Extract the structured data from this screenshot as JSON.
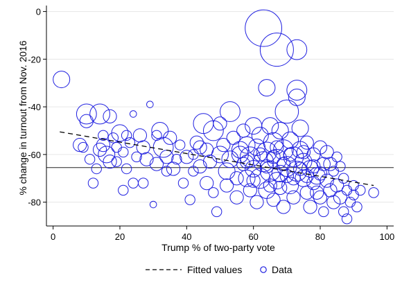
{
  "chart_data": {
    "type": "scatter",
    "xlabel": "Trump % of two-party vote",
    "ylabel": "% change in turnout from Nov. 2016",
    "xlim": [
      -2,
      102
    ],
    "ylim": [
      -90,
      2.5
    ],
    "xticks": [
      0,
      20,
      40,
      60,
      80,
      100
    ],
    "yticks": [
      0,
      -20,
      -40,
      -60,
      -80
    ],
    "grid": "y",
    "legend_position": "bottom",
    "reference_line": {
      "y": -65.5
    },
    "series": [
      {
        "name": "Data",
        "marker": "hollow-circle",
        "color": "#1f1fe0",
        "points": [
          {
            "x": 2.5,
            "y": -28.5,
            "s": 5
          },
          {
            "x": 8,
            "y": -56,
            "s": 4
          },
          {
            "x": 10,
            "y": -43,
            "s": 6
          },
          {
            "x": 10,
            "y": -46,
            "s": 4
          },
          {
            "x": 11,
            "y": -62,
            "s": 3
          },
          {
            "x": 12,
            "y": -72,
            "s": 3
          },
          {
            "x": 14,
            "y": -43,
            "s": 6
          },
          {
            "x": 14,
            "y": -58,
            "s": 4
          },
          {
            "x": 15,
            "y": -52,
            "s": 3
          },
          {
            "x": 15,
            "y": -56,
            "s": 4
          },
          {
            "x": 16,
            "y": -60,
            "s": 5
          },
          {
            "x": 17,
            "y": -44,
            "s": 4
          },
          {
            "x": 17,
            "y": -63,
            "s": 4
          },
          {
            "x": 18,
            "y": -53,
            "s": 3
          },
          {
            "x": 19,
            "y": -57,
            "s": 3
          },
          {
            "x": 20,
            "y": -51,
            "s": 5
          },
          {
            "x": 21,
            "y": -59,
            "s": 3
          },
          {
            "x": 21,
            "y": -75,
            "s": 3
          },
          {
            "x": 22,
            "y": -66,
            "s": 3
          },
          {
            "x": 23,
            "y": -55,
            "s": 3
          },
          {
            "x": 24,
            "y": -43,
            "s": 2
          },
          {
            "x": 24,
            "y": -72,
            "s": 3
          },
          {
            "x": 26,
            "y": -52,
            "s": 4
          },
          {
            "x": 27,
            "y": -57,
            "s": 4
          },
          {
            "x": 27,
            "y": -72,
            "s": 3
          },
          {
            "x": 28,
            "y": -62,
            "s": 4
          },
          {
            "x": 29,
            "y": -39,
            "s": 2
          },
          {
            "x": 30,
            "y": -81,
            "s": 2
          },
          {
            "x": 31,
            "y": -52,
            "s": 3
          },
          {
            "x": 31,
            "y": -64,
            "s": 4
          },
          {
            "x": 32,
            "y": -50,
            "s": 5
          },
          {
            "x": 33,
            "y": -57,
            "s": 6
          },
          {
            "x": 34,
            "y": -61,
            "s": 4
          },
          {
            "x": 35,
            "y": -53,
            "s": 4
          },
          {
            "x": 36,
            "y": -66,
            "s": 4
          },
          {
            "x": 38,
            "y": -56,
            "s": 3
          },
          {
            "x": 39,
            "y": -72,
            "s": 3
          },
          {
            "x": 40,
            "y": -61,
            "s": 4
          },
          {
            "x": 41,
            "y": -79,
            "s": 3
          },
          {
            "x": 42,
            "y": -60,
            "s": 3
          },
          {
            "x": 43,
            "y": -55,
            "s": 4
          },
          {
            "x": 44,
            "y": -65,
            "s": 4
          },
          {
            "x": 45,
            "y": -47,
            "s": 6
          },
          {
            "x": 46,
            "y": -58,
            "s": 4
          },
          {
            "x": 46,
            "y": -72,
            "s": 4
          },
          {
            "x": 47,
            "y": -63,
            "s": 4
          },
          {
            "x": 48,
            "y": -50,
            "s": 6
          },
          {
            "x": 48,
            "y": -76,
            "s": 3
          },
          {
            "x": 49,
            "y": -84,
            "s": 3
          },
          {
            "x": 50,
            "y": -47,
            "s": 4
          },
          {
            "x": 50,
            "y": -60,
            "s": 5
          },
          {
            "x": 51,
            "y": -56,
            "s": 4
          },
          {
            "x": 52,
            "y": -67,
            "s": 5
          },
          {
            "x": 52,
            "y": -73,
            "s": 4
          },
          {
            "x": 53,
            "y": -42,
            "s": 6
          },
          {
            "x": 53,
            "y": -62,
            "s": 5
          },
          {
            "x": 54,
            "y": -53,
            "s": 4
          },
          {
            "x": 55,
            "y": -70,
            "s": 4
          },
          {
            "x": 55,
            "y": -78,
            "s": 4
          },
          {
            "x": 56,
            "y": -58,
            "s": 5
          },
          {
            "x": 57,
            "y": -64,
            "s": 4
          },
          {
            "x": 57,
            "y": -50,
            "s": 4
          },
          {
            "x": 58,
            "y": -70,
            "s": 5
          },
          {
            "x": 58,
            "y": -56,
            "s": 5
          },
          {
            "x": 59,
            "y": -61,
            "s": 6
          },
          {
            "x": 59,
            "y": -75,
            "s": 4
          },
          {
            "x": 60,
            "y": -48,
            "s": 5
          },
          {
            "x": 60,
            "y": -66,
            "s": 5
          },
          {
            "x": 61,
            "y": -57,
            "s": 5
          },
          {
            "x": 61,
            "y": -80,
            "s": 4
          },
          {
            "x": 62,
            "y": -70,
            "s": 6
          },
          {
            "x": 62,
            "y": -52,
            "s": 5
          },
          {
            "x": 63,
            "y": -63,
            "s": 6
          },
          {
            "x": 63,
            "y": -7,
            "s": 11
          },
          {
            "x": 64,
            "y": -59,
            "s": 6
          },
          {
            "x": 64,
            "y": -32,
            "s": 5
          },
          {
            "x": 64,
            "y": -75,
            "s": 5
          },
          {
            "x": 65,
            "y": -48,
            "s": 5
          },
          {
            "x": 65,
            "y": -67,
            "s": 6
          },
          {
            "x": 66,
            "y": -55,
            "s": 6
          },
          {
            "x": 66,
            "y": -79,
            "s": 4
          },
          {
            "x": 67,
            "y": -16,
            "s": 10
          },
          {
            "x": 67,
            "y": -62,
            "s": 6
          },
          {
            "x": 67,
            "y": -71,
            "s": 5
          },
          {
            "x": 68,
            "y": -50,
            "s": 5
          },
          {
            "x": 68,
            "y": -68,
            "s": 5
          },
          {
            "x": 69,
            "y": -58,
            "s": 6
          },
          {
            "x": 69,
            "y": -82,
            "s": 4
          },
          {
            "x": 70,
            "y": -42,
            "s": 7
          },
          {
            "x": 70,
            "y": -65,
            "s": 6
          },
          {
            "x": 71,
            "y": -73,
            "s": 5
          },
          {
            "x": 71,
            "y": -54,
            "s": 5
          },
          {
            "x": 72,
            "y": -61,
            "s": 6
          },
          {
            "x": 72,
            "y": -78,
            "s": 4
          },
          {
            "x": 73,
            "y": -33,
            "s": 6
          },
          {
            "x": 73,
            "y": -36,
            "s": 5
          },
          {
            "x": 73,
            "y": -67,
            "s": 6
          },
          {
            "x": 73,
            "y": -16,
            "s": 6
          },
          {
            "x": 74,
            "y": -49,
            "s": 5
          },
          {
            "x": 74,
            "y": -58,
            "s": 5
          },
          {
            "x": 75,
            "y": -70,
            "s": 5
          },
          {
            "x": 75,
            "y": -63,
            "s": 5
          },
          {
            "x": 76,
            "y": -55,
            "s": 4
          },
          {
            "x": 76,
            "y": -76,
            "s": 4
          },
          {
            "x": 77,
            "y": -66,
            "s": 5
          },
          {
            "x": 77,
            "y": -82,
            "s": 4
          },
          {
            "x": 78,
            "y": -60,
            "s": 4
          },
          {
            "x": 78,
            "y": -72,
            "s": 4
          },
          {
            "x": 79,
            "y": -69,
            "s": 5
          },
          {
            "x": 80,
            "y": -57,
            "s": 4
          },
          {
            "x": 80,
            "y": -78,
            "s": 4
          },
          {
            "x": 81,
            "y": -64,
            "s": 4
          },
          {
            "x": 81,
            "y": -84,
            "s": 3
          },
          {
            "x": 82,
            "y": -71,
            "s": 4
          },
          {
            "x": 82,
            "y": -59,
            "s": 4
          },
          {
            "x": 83,
            "y": -75,
            "s": 4
          },
          {
            "x": 84,
            "y": -67,
            "s": 3
          },
          {
            "x": 84,
            "y": -80,
            "s": 4
          },
          {
            "x": 85,
            "y": -61,
            "s": 3
          },
          {
            "x": 85,
            "y": -73,
            "s": 4
          },
          {
            "x": 86,
            "y": -78,
            "s": 4
          },
          {
            "x": 87,
            "y": -70,
            "s": 3
          },
          {
            "x": 87,
            "y": -84,
            "s": 3
          },
          {
            "x": 88,
            "y": -87,
            "s": 3
          },
          {
            "x": 88,
            "y": -75,
            "s": 3
          },
          {
            "x": 89,
            "y": -80,
            "s": 3
          },
          {
            "x": 90,
            "y": -73,
            "s": 3
          },
          {
            "x": 90,
            "y": -77,
            "s": 3
          },
          {
            "x": 91,
            "y": -82,
            "s": 3
          },
          {
            "x": 92,
            "y": -75,
            "s": 3
          },
          {
            "x": 96,
            "y": -76,
            "s": 3
          },
          {
            "x": 56,
            "y": -60,
            "s": 5
          },
          {
            "x": 58,
            "y": -63,
            "s": 4
          },
          {
            "x": 60,
            "y": -71,
            "s": 4
          },
          {
            "x": 62,
            "y": -60,
            "s": 4
          },
          {
            "x": 64,
            "y": -65,
            "s": 4
          },
          {
            "x": 65,
            "y": -73,
            "s": 4
          },
          {
            "x": 66,
            "y": -61,
            "s": 4
          },
          {
            "x": 67,
            "y": -57,
            "s": 4
          },
          {
            "x": 68,
            "y": -74,
            "s": 4
          },
          {
            "x": 69,
            "y": -64,
            "s": 4
          },
          {
            "x": 70,
            "y": -69,
            "s": 4
          },
          {
            "x": 71,
            "y": -60,
            "s": 4
          },
          {
            "x": 72,
            "y": -70,
            "s": 4
          },
          {
            "x": 74,
            "y": -66,
            "s": 4
          },
          {
            "x": 75,
            "y": -59,
            "s": 4
          },
          {
            "x": 76,
            "y": -69,
            "s": 4
          },
          {
            "x": 78,
            "y": -65,
            "s": 4
          },
          {
            "x": 79,
            "y": -76,
            "s": 4
          },
          {
            "x": 80,
            "y": -68,
            "s": 4
          },
          {
            "x": 83,
            "y": -64,
            "s": 4
          },
          {
            "x": 86,
            "y": -65,
            "s": 3
          },
          {
            "x": 44,
            "y": -57,
            "s": 4
          },
          {
            "x": 42,
            "y": -67,
            "s": 3
          },
          {
            "x": 37,
            "y": -62,
            "s": 3
          },
          {
            "x": 34,
            "y": -67,
            "s": 3
          },
          {
            "x": 19,
            "y": -63,
            "s": 3
          },
          {
            "x": 13,
            "y": -66,
            "s": 3
          },
          {
            "x": 9,
            "y": -57,
            "s": 3
          },
          {
            "x": 22,
            "y": -52,
            "s": 3
          },
          {
            "x": 25,
            "y": -61,
            "s": 3
          }
        ]
      }
    ],
    "fitted": {
      "name": "Fitted values",
      "style": "dashed",
      "x": [
        2,
        96
      ],
      "y": [
        -50.5,
        -73
      ]
    }
  }
}
